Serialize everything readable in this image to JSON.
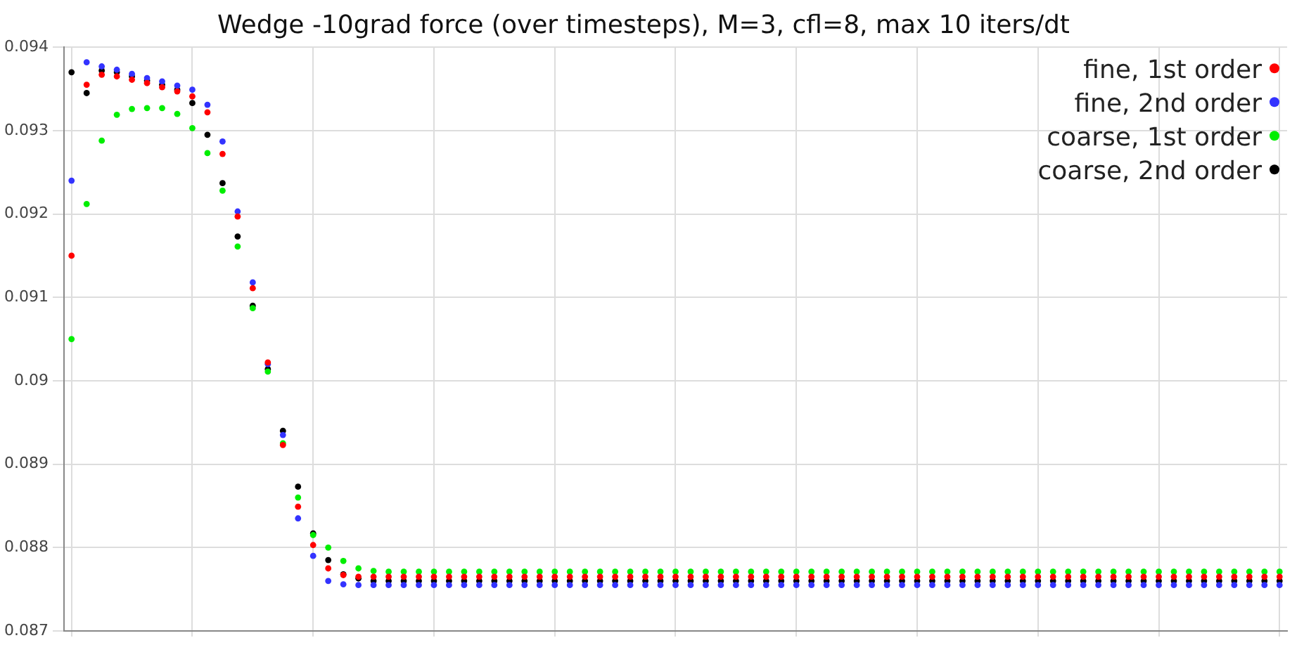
{
  "chart_data": {
    "type": "scatter",
    "title": "Wedge -10grad force (over timesteps), M=3, cfl=8, max 10 iters/dt",
    "categories": [
      null,
      null,
      null,
      null,
      null,
      null,
      null,
      null,
      null,
      null,
      null,
      null,
      null,
      null,
      null,
      null,
      null,
      null,
      null,
      null,
      null,
      null,
      null,
      null,
      null,
      null,
      null,
      null,
      null,
      null,
      null,
      null,
      null,
      null,
      null,
      null,
      null,
      null,
      null,
      null,
      null,
      null,
      null,
      null,
      null,
      null,
      null,
      null,
      null,
      null,
      null,
      null,
      null,
      null,
      null,
      null,
      null,
      null,
      null,
      null,
      null,
      null,
      null,
      null,
      null,
      null,
      null,
      null,
      null,
      null,
      null,
      null,
      null,
      null,
      null,
      null,
      null,
      null,
      null,
      null,
      null
    ],
    "series": [
      {
        "name": "fine, 1st order",
        "color": "#ff0000",
        "values": [
          0.0915,
          0.09355,
          0.09367,
          0.09365,
          0.09361,
          0.09357,
          0.09352,
          0.09347,
          0.09341,
          0.09322,
          0.09272,
          0.09197,
          0.09111,
          0.09022,
          0.08923,
          0.08849,
          0.08803,
          0.08775,
          0.08767,
          0.08765,
          0.08765,
          0.08765,
          0.08765,
          0.08765,
          0.08765,
          0.08765,
          0.08765,
          0.08765,
          0.08765,
          0.08765,
          0.08765,
          0.08765,
          0.08765,
          0.08765,
          0.08765,
          0.08765,
          0.08765,
          0.08765,
          0.08765,
          0.08765,
          0.08765,
          0.08765,
          0.08765,
          0.08765,
          0.08765,
          0.08765,
          0.08765,
          0.08765,
          0.08765,
          0.08765,
          0.08765,
          0.08765,
          0.08765,
          0.08765,
          0.08765,
          0.08765,
          0.08765,
          0.08765,
          0.08765,
          0.08765,
          0.08765,
          0.08765,
          0.08765,
          0.08765,
          0.08765,
          0.08765,
          0.08765,
          0.08765,
          0.08765,
          0.08765,
          0.08765,
          0.08765,
          0.08765,
          0.08765,
          0.08765,
          0.08765,
          0.08765,
          0.08765,
          0.08765,
          0.08765,
          0.08765
        ]
      },
      {
        "name": "fine, 2nd order",
        "color": "#3333ff",
        "values": [
          0.0924,
          0.09382,
          0.09377,
          0.09373,
          0.09368,
          0.09363,
          0.09359,
          0.09354,
          0.09349,
          0.09331,
          0.09287,
          0.09203,
          0.09118,
          0.0902,
          0.08935,
          0.08835,
          0.0879,
          0.0876,
          0.08756,
          0.08755,
          0.08755,
          0.08755,
          0.08755,
          0.08755,
          0.08755,
          0.08755,
          0.08755,
          0.08755,
          0.08755,
          0.08755,
          0.08755,
          0.08755,
          0.08755,
          0.08755,
          0.08755,
          0.08755,
          0.08755,
          0.08755,
          0.08755,
          0.08755,
          0.08755,
          0.08755,
          0.08755,
          0.08755,
          0.08755,
          0.08755,
          0.08755,
          0.08755,
          0.08755,
          0.08755,
          0.08755,
          0.08755,
          0.08755,
          0.08755,
          0.08755,
          0.08755,
          0.08755,
          0.08755,
          0.08755,
          0.08755,
          0.08755,
          0.08755,
          0.08755,
          0.08755,
          0.08755,
          0.08755,
          0.08755,
          0.08755,
          0.08755,
          0.08755,
          0.08755,
          0.08755,
          0.08755,
          0.08755,
          0.08755,
          0.08755,
          0.08755,
          0.08755,
          0.08755,
          0.08755,
          0.08755
        ]
      },
      {
        "name": "coarse, 1st order",
        "color": "#00ee00",
        "values": [
          0.0905,
          0.09212,
          0.09288,
          0.09319,
          0.09326,
          0.09327,
          0.09327,
          0.0932,
          0.09303,
          0.09273,
          0.09228,
          0.09161,
          0.09087,
          0.09011,
          0.08925,
          0.0886,
          0.08815,
          0.088,
          0.08784,
          0.08775,
          0.08772,
          0.08771,
          0.08771,
          0.08771,
          0.08771,
          0.08771,
          0.08771,
          0.08771,
          0.08771,
          0.08771,
          0.08771,
          0.08771,
          0.08771,
          0.08771,
          0.08771,
          0.08771,
          0.08771,
          0.08771,
          0.08771,
          0.08771,
          0.08771,
          0.08771,
          0.08771,
          0.08771,
          0.08771,
          0.08771,
          0.08771,
          0.08771,
          0.08771,
          0.08771,
          0.08771,
          0.08771,
          0.08771,
          0.08771,
          0.08771,
          0.08771,
          0.08771,
          0.08771,
          0.08771,
          0.08771,
          0.08771,
          0.08771,
          0.08771,
          0.08771,
          0.08771,
          0.08771,
          0.08771,
          0.08771,
          0.08771,
          0.08771,
          0.08771,
          0.08771,
          0.08771,
          0.08771,
          0.08771,
          0.08771,
          0.08771,
          0.08771,
          0.08771,
          0.08771,
          0.08771
        ]
      },
      {
        "name": "coarse, 2nd order",
        "color": "#000000",
        "values": [
          0.0937,
          0.09345,
          0.09372,
          0.0937,
          0.09365,
          0.0936,
          0.09355,
          0.09349,
          0.09333,
          0.09295,
          0.09237,
          0.09173,
          0.0909,
          0.09014,
          0.0894,
          0.08873,
          0.08817,
          0.08785,
          0.08768,
          0.08763,
          0.0876,
          0.0876,
          0.0876,
          0.0876,
          0.0876,
          0.0876,
          0.0876,
          0.0876,
          0.0876,
          0.0876,
          0.0876,
          0.0876,
          0.0876,
          0.0876,
          0.0876,
          0.0876,
          0.0876,
          0.0876,
          0.0876,
          0.0876,
          0.0876,
          0.0876,
          0.0876,
          0.0876,
          0.0876,
          0.0876,
          0.0876,
          0.0876,
          0.0876,
          0.0876,
          0.0876,
          0.0876,
          0.0876,
          0.0876,
          0.0876,
          0.0876,
          0.0876,
          0.0876,
          0.0876,
          0.0876,
          0.0876,
          0.0876,
          0.0876,
          0.0876,
          0.0876,
          0.0876,
          0.0876,
          0.0876,
          0.0876,
          0.0876,
          0.0876,
          0.0876,
          0.0876,
          0.0876,
          0.0876,
          0.0876,
          0.0876,
          0.0876,
          0.0876,
          0.0876,
          0.0876
        ]
      }
    ],
    "ylim": [
      0.087,
      0.094
    ],
    "yticks": [
      0.087,
      0.088,
      0.089,
      0.09,
      0.091,
      0.092,
      0.093,
      0.094
    ],
    "grid": true,
    "legend": "top right",
    "marker": "circle",
    "tick_labels": "y"
  }
}
